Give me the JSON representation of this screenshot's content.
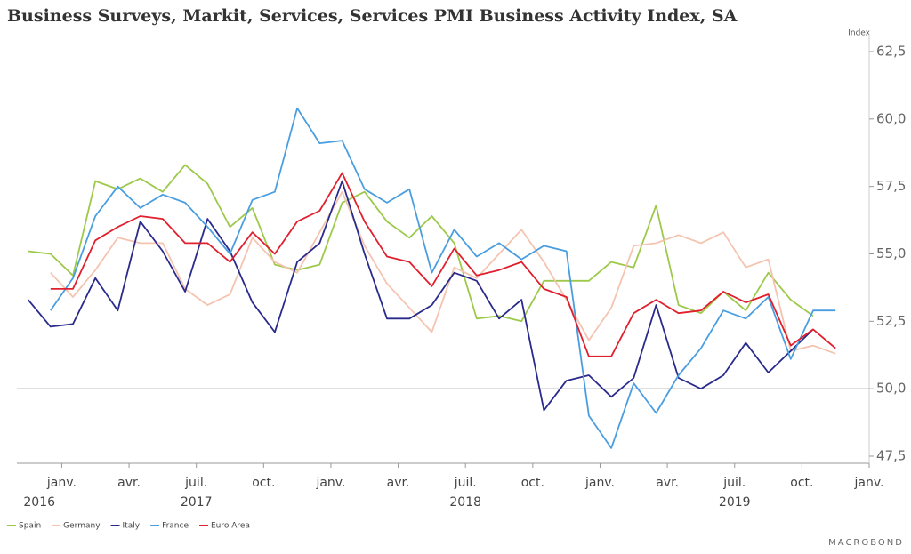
{
  "chart_data": {
    "type": "line",
    "title": "Business Surveys, Markit, Services, Services PMI Business Activity Index, SA",
    "y_axis_label": "Index",
    "source": "MACROBOND",
    "x": [
      "2016-11",
      "2016-12",
      "2017-01",
      "2017-02",
      "2017-03",
      "2017-04",
      "2017-05",
      "2017-06",
      "2017-07",
      "2017-08",
      "2017-09",
      "2017-10",
      "2017-11",
      "2017-12",
      "2018-01",
      "2018-02",
      "2018-03",
      "2018-04",
      "2018-05",
      "2018-06",
      "2018-07",
      "2018-08",
      "2018-09",
      "2018-10",
      "2018-11",
      "2018-12",
      "2019-01",
      "2019-02",
      "2019-03",
      "2019-04",
      "2019-05",
      "2019-06",
      "2019-07",
      "2019-08",
      "2019-09",
      "2019-10",
      "2019-11"
    ],
    "xlim": [
      "2016-11",
      "2020-01"
    ],
    "xticks": [
      {
        "value": "2017-01",
        "label": "janv."
      },
      {
        "value": "2017-04",
        "label": "avr."
      },
      {
        "value": "2017-07",
        "label": "juil."
      },
      {
        "value": "2017-10",
        "label": "oct."
      },
      {
        "value": "2018-01",
        "label": "janv."
      },
      {
        "value": "2018-04",
        "label": "avr."
      },
      {
        "value": "2018-07",
        "label": "juil."
      },
      {
        "value": "2018-10",
        "label": "oct."
      },
      {
        "value": "2019-01",
        "label": "janv."
      },
      {
        "value": "2019-04",
        "label": "avr."
      },
      {
        "value": "2019-07",
        "label": "juil."
      },
      {
        "value": "2019-10",
        "label": "oct."
      },
      {
        "value": "2020-01",
        "label": "janv."
      }
    ],
    "x_year_labels": [
      {
        "value": "2016-12",
        "label": "2016"
      },
      {
        "value": "2017-07",
        "label": "2017"
      },
      {
        "value": "2018-07",
        "label": "2018"
      },
      {
        "value": "2019-07",
        "label": "2019"
      }
    ],
    "ylim": [
      47.5,
      62.5
    ],
    "yticks": [
      {
        "value": 47.5,
        "label": "47,5"
      },
      {
        "value": 50,
        "label": "50,0"
      },
      {
        "value": 52.5,
        "label": "52,5"
      },
      {
        "value": 55,
        "label": "55,0"
      },
      {
        "value": 57.5,
        "label": "57,5"
      },
      {
        "value": 60,
        "label": "60,0"
      },
      {
        "value": 62.5,
        "label": "62,5"
      }
    ],
    "reference_line": 50,
    "legend": "bottom-left",
    "series": [
      {
        "name": "Spain",
        "color": "#9dc94a",
        "values": [
          55.1,
          55.0,
          54.2,
          57.7,
          57.4,
          57.8,
          57.3,
          58.3,
          57.6,
          56.0,
          56.7,
          54.6,
          54.4,
          54.6,
          56.9,
          57.3,
          56.2,
          55.6,
          56.4,
          55.4,
          52.6,
          52.7,
          52.5,
          54.0,
          54.0,
          54.0,
          54.7,
          54.5,
          56.8,
          53.1,
          52.8,
          53.6,
          52.9,
          54.3,
          53.3,
          52.7,
          null
        ]
      },
      {
        "name": "Germany",
        "color": "#f4c4b0",
        "values": [
          null,
          54.3,
          53.4,
          54.4,
          55.6,
          55.4,
          55.4,
          53.7,
          53.1,
          53.5,
          55.6,
          54.7,
          54.3,
          55.8,
          57.3,
          55.3,
          53.9,
          53.0,
          52.1,
          54.5,
          54.1,
          55.0,
          55.9,
          54.7,
          53.3,
          51.8,
          53.0,
          55.3,
          55.4,
          55.7,
          55.4,
          55.8,
          54.5,
          54.8,
          51.4,
          51.6,
          51.3
        ]
      },
      {
        "name": "Italy",
        "color": "#2a2a8c",
        "values": [
          53.3,
          52.3,
          52.4,
          54.1,
          52.9,
          56.2,
          55.1,
          53.6,
          56.3,
          55.1,
          53.2,
          52.1,
          54.7,
          55.4,
          57.7,
          55.0,
          52.6,
          52.6,
          53.1,
          54.3,
          54.0,
          52.6,
          53.3,
          49.2,
          50.3,
          50.5,
          49.7,
          50.4,
          53.1,
          50.4,
          50.0,
          50.5,
          51.7,
          50.6,
          51.4,
          52.2,
          null
        ]
      },
      {
        "name": "France",
        "color": "#4a9ee0",
        "values": [
          null,
          52.9,
          54.1,
          56.4,
          57.5,
          56.7,
          57.2,
          56.9,
          56.0,
          55.0,
          57.0,
          57.3,
          60.4,
          59.1,
          59.2,
          57.4,
          56.9,
          57.4,
          54.3,
          55.9,
          54.9,
          55.4,
          54.8,
          55.3,
          55.1,
          49.0,
          47.8,
          50.2,
          49.1,
          50.5,
          51.5,
          52.9,
          52.6,
          53.4,
          51.1,
          52.9,
          52.9
        ]
      },
      {
        "name": "Euro Area",
        "color": "#e0202e",
        "values": [
          null,
          53.7,
          53.7,
          55.5,
          56.0,
          56.4,
          56.3,
          55.4,
          55.4,
          54.7,
          55.8,
          55.0,
          56.2,
          56.6,
          58.0,
          56.2,
          54.9,
          54.7,
          53.8,
          55.2,
          54.2,
          54.4,
          54.7,
          53.7,
          53.4,
          51.2,
          51.2,
          52.8,
          53.3,
          52.8,
          52.9,
          53.6,
          53.2,
          53.5,
          51.6,
          52.2,
          51.5
        ]
      }
    ]
  }
}
